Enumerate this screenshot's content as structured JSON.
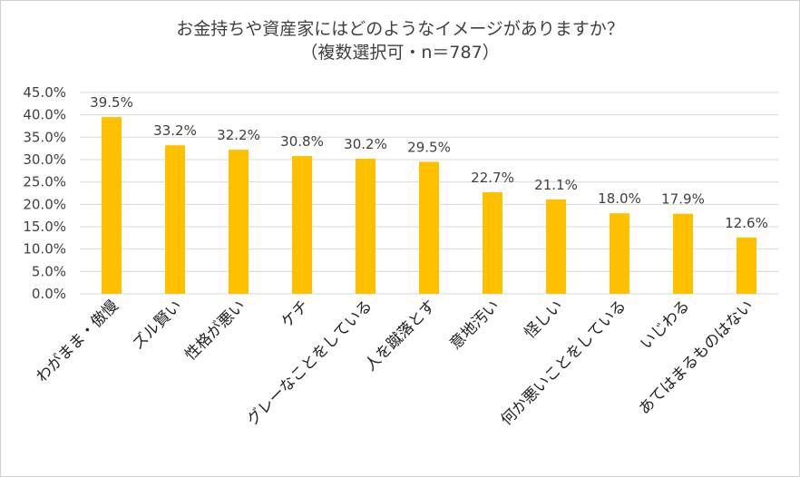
{
  "chart_data": {
    "type": "bar",
    "title": "お金持ちや資産家にはどのようなイメージがありますか？",
    "subtitle": "（複数選択可・n＝787）",
    "categories": [
      "わがまま・傲慢",
      "ズル賢い",
      "性格が悪い",
      "ケチ",
      "グレーなことをしている",
      "人を蹴落とす",
      "意地汚い",
      "怪しい",
      "何か悪いことをしている",
      "いじわる",
      "あてはまるものはない"
    ],
    "values": [
      39.5,
      33.2,
      32.2,
      30.8,
      30.2,
      29.5,
      22.7,
      21.1,
      18.0,
      17.9,
      12.6
    ],
    "value_labels": [
      "39.5%",
      "33.2%",
      "32.2%",
      "30.8%",
      "30.2%",
      "29.5%",
      "22.7%",
      "21.1%",
      "18.0%",
      "17.9%",
      "12.6%"
    ],
    "yticks": [
      0,
      5,
      10,
      15,
      20,
      25,
      30,
      35,
      40,
      45
    ],
    "ytick_labels": [
      "0.0%",
      "5.0%",
      "10.0%",
      "15.0%",
      "20.0%",
      "25.0%",
      "30.0%",
      "35.0%",
      "40.0%",
      "45.0%"
    ],
    "ylim": [
      0,
      45
    ],
    "grid": true,
    "bar_color": "#FFC000",
    "grid_color": "#D9D9D9",
    "text_color": "#404040"
  }
}
